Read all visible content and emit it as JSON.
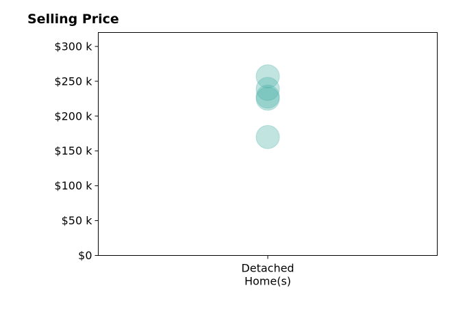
{
  "chart_data": {
    "type": "scatter",
    "title": "Selling Price",
    "xlabel": "",
    "ylabel": "",
    "categories": [
      "Detached Home(s)"
    ],
    "category_label_lines": [
      [
        "Detached",
        "Home(s)"
      ]
    ],
    "series": [
      {
        "category": "Detached Home(s)",
        "values": [
          257000,
          239000,
          228000,
          225000,
          170000
        ]
      }
    ],
    "ylim": [
      0,
      320000
    ],
    "yticks": [
      0,
      50000,
      100000,
      150000,
      200000,
      250000,
      300000
    ],
    "ytick_labels": [
      "$0",
      "$50 k",
      "$100 k",
      "$150 k",
      "$200 k",
      "$250 k",
      "$300 k"
    ],
    "grid": false,
    "legend": "none",
    "marker_color": "#4db3a8",
    "marker_alpha": 0.35
  }
}
